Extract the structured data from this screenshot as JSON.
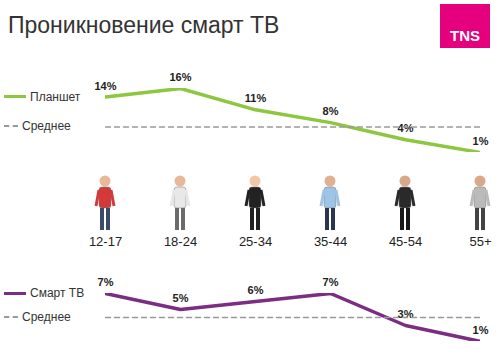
{
  "logo": "TNS",
  "chart_data": [
    {
      "type": "line",
      "title": "Проникновение смарт ТВ",
      "categories": [
        "12-17",
        "18-24",
        "25-34",
        "35-44",
        "45-54",
        "55+"
      ],
      "tick_labels": "x",
      "legend": "left",
      "series": [
        {
          "name": "Планшет",
          "color": "#8dc63f",
          "values": [
            14,
            16,
            11,
            8,
            4,
            1
          ],
          "value_labels": [
            "14%",
            "16%",
            "11%",
            "8%",
            "4%",
            "1%"
          ],
          "data_labels": true
        },
        {
          "name": "Среднее",
          "color": "#999999",
          "line_style": "dashed",
          "values": [
            7,
            7,
            7,
            7,
            7,
            7
          ]
        }
      ]
    },
    {
      "type": "line",
      "categories": [
        "12-17",
        "18-24",
        "25-34",
        "35-44",
        "45-54",
        "55+"
      ],
      "tick_labels": false,
      "legend": "left",
      "series": [
        {
          "name": "Смарт ТВ",
          "color": "#7b2c83",
          "values": [
            7,
            5,
            6,
            7,
            3,
            1
          ],
          "value_labels": [
            "7%",
            "5%",
            "6%",
            "7%",
            "3%",
            "1%"
          ],
          "data_labels": true
        },
        {
          "name": "Среднее",
          "color": "#999999",
          "line_style": "dashed",
          "values": [
            4,
            4,
            4,
            4,
            4,
            4
          ]
        }
      ]
    }
  ]
}
